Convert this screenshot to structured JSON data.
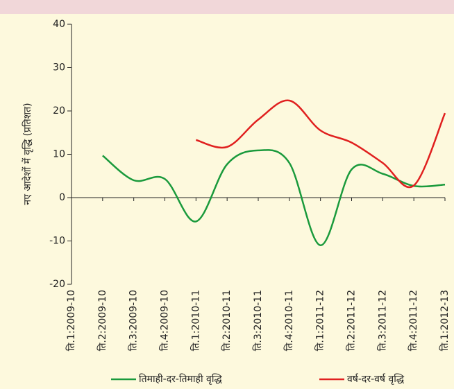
{
  "chart_data": {
    "type": "line",
    "y_label": "नए आदेशों में वृद्धि (प्रतिशत)",
    "categories": [
      "ति.1:2009-10",
      "ति.2:2009-10",
      "ति.3:2009-10",
      "ति.4:2009-10",
      "ति.1:2010-11",
      "ति.2:2010-11",
      "ति.3:2010-11",
      "ति.4:2010-11",
      "ति.1:2011-12",
      "ti.2:2011-12",
      "ति.3:2011-12",
      "ति.4:2011-12",
      "ति.1:2012-13"
    ],
    "series": [
      {
        "name": "तिमाही-दर-तिमाही वृद्धि",
        "color": "#1a9a3c",
        "values": [
          null,
          9.7,
          4,
          4.3,
          -5.5,
          7.7,
          10.9,
          8,
          -11,
          6.5,
          5.5,
          2.7,
          3
        ]
      },
      {
        "name": "वर्ष-दर-वर्ष वृद्धि",
        "color": "#e0201f",
        "values": [
          null,
          null,
          null,
          null,
          13.3,
          11.7,
          18,
          22.4,
          15.5,
          12.7,
          8,
          2.8,
          19.5
        ]
      }
    ],
    "ylim": [
      -20,
      40
    ],
    "yticks": [
      -20,
      -10,
      0,
      10,
      20,
      30,
      40
    ]
  }
}
